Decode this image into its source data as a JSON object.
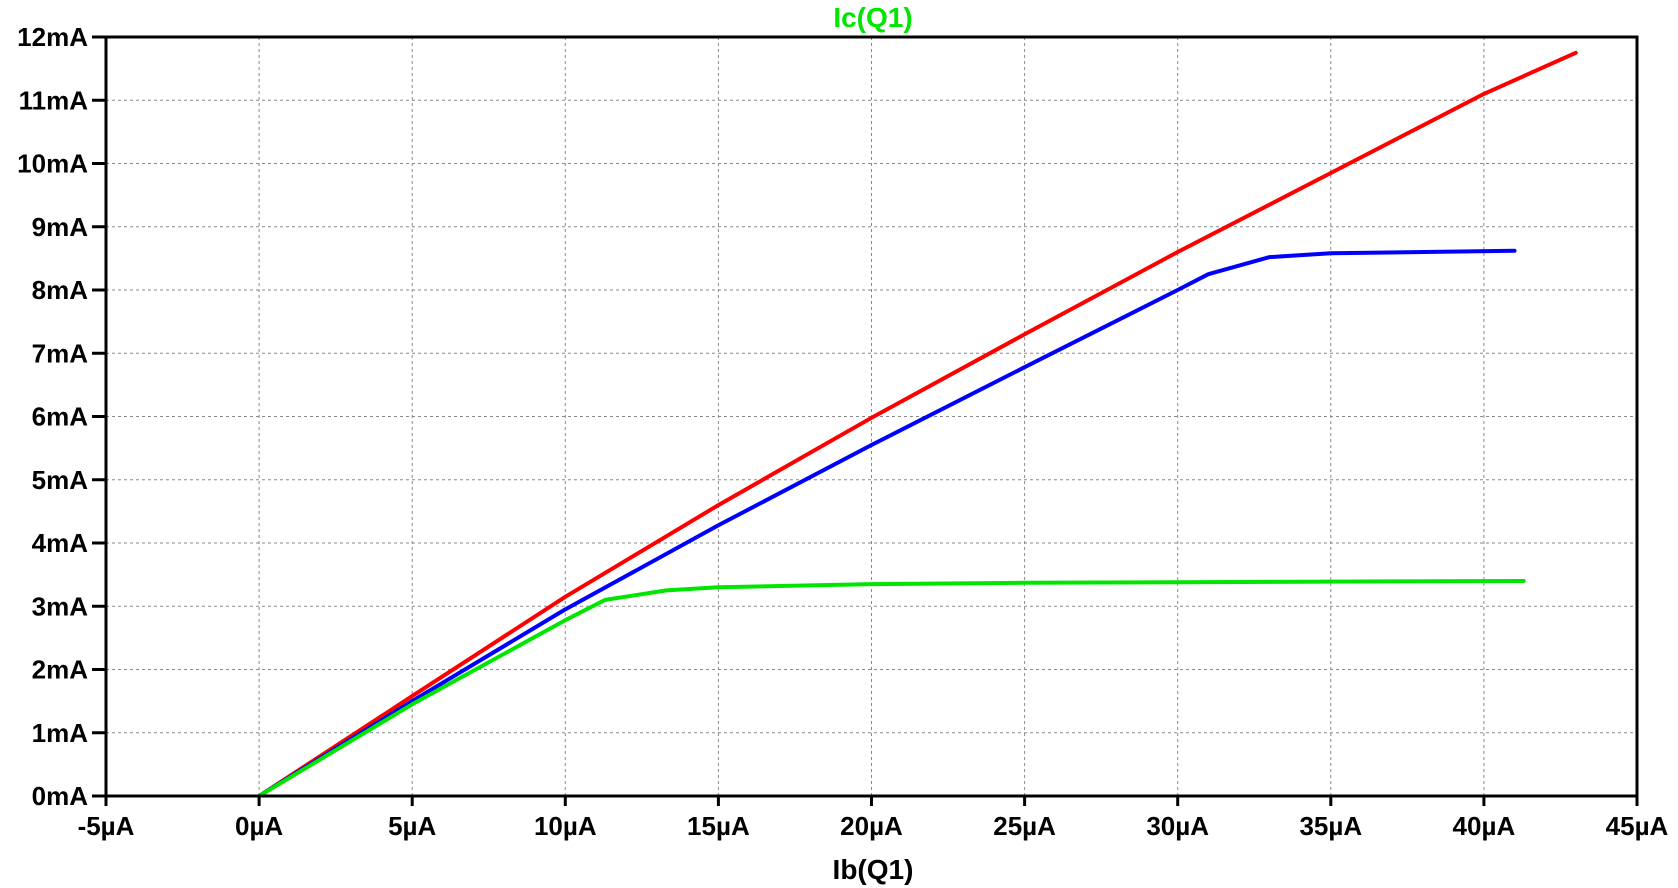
{
  "chart_data": {
    "type": "line",
    "title": "Ic(Q1)",
    "xlabel": "Ib(Q1)",
    "ylabel": "",
    "xlim": [
      -5,
      45
    ],
    "ylim": [
      0,
      12
    ],
    "x_ticks": [
      -5,
      0,
      5,
      10,
      15,
      20,
      25,
      30,
      35,
      40,
      45
    ],
    "y_ticks": [
      0,
      1,
      2,
      3,
      4,
      5,
      6,
      7,
      8,
      9,
      10,
      11,
      12
    ],
    "x_tick_labels": [
      "-5µA",
      "0µA",
      "5µA",
      "10µA",
      "15µA",
      "20µA",
      "25µA",
      "30µA",
      "35µA",
      "40µA",
      "45µA"
    ],
    "y_tick_labels": [
      "0mA",
      "1mA",
      "2mA",
      "3mA",
      "4mA",
      "5mA",
      "6mA",
      "7mA",
      "8mA",
      "9mA",
      "10mA",
      "11mA",
      "12mA"
    ],
    "grid": true,
    "title_color": "#00e600",
    "series": [
      {
        "color": "#ff0000",
        "points": [
          [
            0,
            0
          ],
          [
            5,
            1.58
          ],
          [
            10,
            3.15
          ],
          [
            15,
            4.6
          ],
          [
            20,
            5.98
          ],
          [
            25,
            7.3
          ],
          [
            30,
            8.6
          ],
          [
            35,
            9.85
          ],
          [
            40,
            11.1
          ],
          [
            43,
            11.75
          ]
        ]
      },
      {
        "color": "#0000ff",
        "points": [
          [
            0,
            0
          ],
          [
            5,
            1.5
          ],
          [
            10,
            2.95
          ],
          [
            15,
            4.28
          ],
          [
            20,
            5.55
          ],
          [
            25,
            6.78
          ],
          [
            30,
            8.0
          ],
          [
            31,
            8.25
          ],
          [
            33,
            8.52
          ],
          [
            35,
            8.58
          ],
          [
            41,
            8.62
          ]
        ]
      },
      {
        "color": "#00e600",
        "points": [
          [
            0,
            0
          ],
          [
            5,
            1.45
          ],
          [
            10,
            2.78
          ],
          [
            11.3,
            3.1
          ],
          [
            13.3,
            3.25
          ],
          [
            15,
            3.3
          ],
          [
            20,
            3.35
          ],
          [
            25,
            3.37
          ],
          [
            30,
            3.38
          ],
          [
            35,
            3.39
          ],
          [
            41.3,
            3.4
          ]
        ]
      }
    ]
  }
}
